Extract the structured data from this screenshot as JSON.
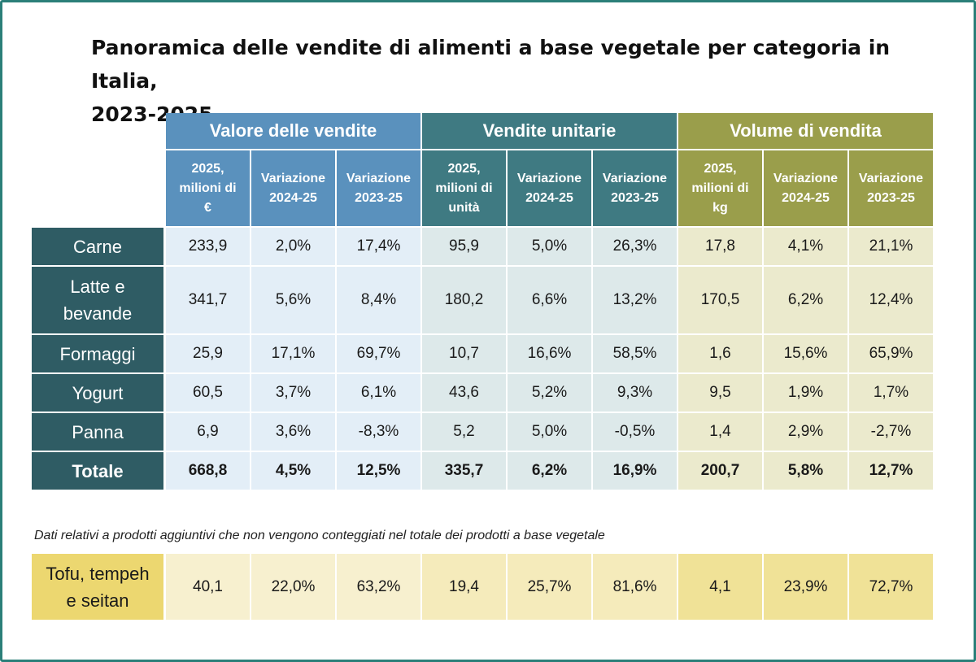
{
  "title": [
    "Panoramica delle vendite di alimenti a base vegetale per categoria in Italia,",
    "2023-2025"
  ],
  "colors": {
    "value_header": "#5a91bd",
    "units_header": "#3f7a82",
    "volume_header": "#9a9e4b",
    "row_label": "#2f5c64",
    "value_body": "#e3eef7",
    "units_body": "#dde9ea",
    "volume_body": "#ebeacd",
    "tofu_label": "#ecd770",
    "tofu_body_light": "#f7f0cf",
    "tofu_body_mid": "#f5ebbb",
    "tofu_body_dark": "#f0e297"
  },
  "chart_data": {
    "type": "table",
    "groups": [
      "Valore delle vendite",
      "Vendite unitarie",
      "Volume di vendita"
    ],
    "subheaders": [
      [
        "2025,",
        "milioni di",
        "€"
      ],
      [
        "Variazione",
        "2024-25"
      ],
      [
        "Variazione",
        "2023-25"
      ],
      [
        "2025,",
        "milioni di",
        "unità"
      ],
      [
        "Variazione",
        "2024-25"
      ],
      [
        "Variazione",
        "2023-25"
      ],
      [
        "2025,",
        "milioni di",
        "kg"
      ],
      [
        "Variazione",
        "2024-25"
      ],
      [
        "Variazione",
        "2023-25"
      ]
    ],
    "rows": [
      {
        "label": [
          "Carne"
        ],
        "values": [
          "233,9",
          "2,0%",
          "17,4%",
          "95,9",
          "5,0%",
          "26,3%",
          "17,8",
          "4,1%",
          "21,1%"
        ]
      },
      {
        "label": [
          "Latte e",
          "bevande"
        ],
        "values": [
          "341,7",
          "5,6%",
          "8,4%",
          "180,2",
          "6,6%",
          "13,2%",
          "170,5",
          "6,2%",
          "12,4%"
        ]
      },
      {
        "label": [
          "Formaggi"
        ],
        "values": [
          "25,9",
          "17,1%",
          "69,7%",
          "10,7",
          "16,6%",
          "58,5%",
          "1,6",
          "15,6%",
          "65,9%"
        ]
      },
      {
        "label": [
          "Yogurt"
        ],
        "values": [
          "60,5",
          "3,7%",
          "6,1%",
          "43,6",
          "5,2%",
          "9,3%",
          "9,5",
          "1,9%",
          "1,7%"
        ]
      },
      {
        "label": [
          "Panna"
        ],
        "values": [
          "6,9",
          "3,6%",
          "-8,3%",
          "5,2",
          "5,0%",
          "-0,5%",
          "1,4",
          "2,9%",
          "-2,7%"
        ]
      },
      {
        "label": [
          "Totale"
        ],
        "values": [
          "668,8",
          "4,5%",
          "12,5%",
          "335,7",
          "6,2%",
          "16,9%",
          "200,7",
          "5,8%",
          "12,7%"
        ],
        "bold": true
      }
    ],
    "note": "Dati relativi a prodotti aggiuntivi che non vengono conteggiati nel totale dei prodotti a base vegetale",
    "extra_row": {
      "label": [
        "Tofu, tempeh",
        "e seitan"
      ],
      "values": [
        "40,1",
        "22,0%",
        "63,2%",
        "19,4",
        "25,7%",
        "81,6%",
        "4,1",
        "23,9%",
        "72,7%"
      ]
    }
  }
}
